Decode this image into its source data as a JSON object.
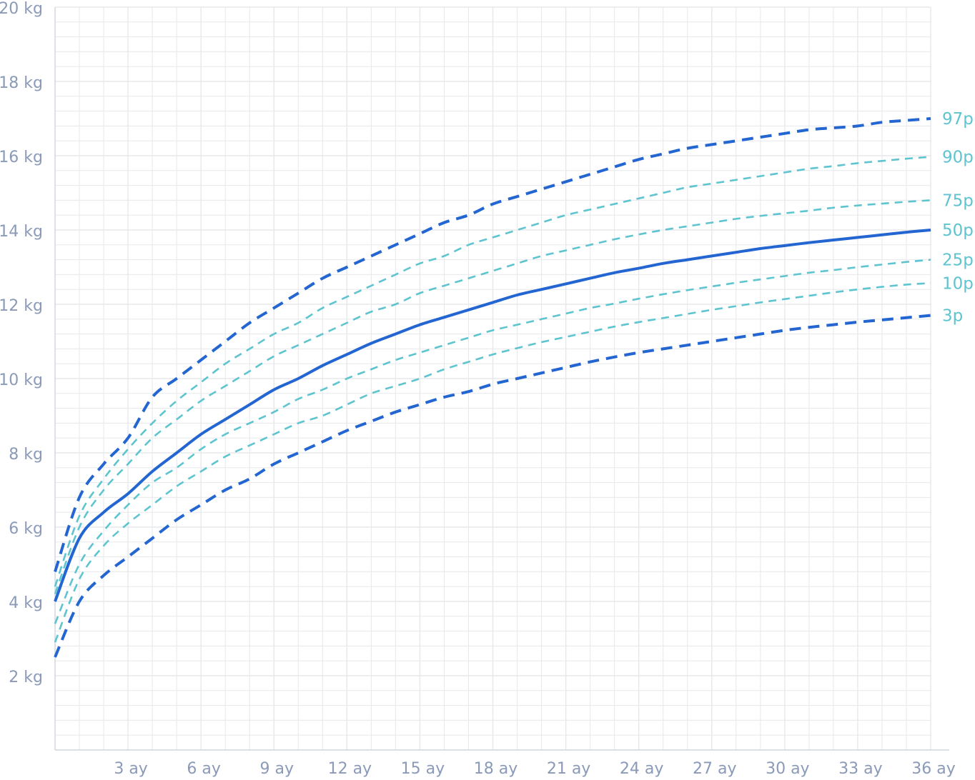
{
  "chart_data": {
    "type": "line",
    "title": "",
    "xlabel": "",
    "ylabel": "",
    "x_unit": "ay",
    "y_unit": "kg",
    "xlim": [
      0,
      36
    ],
    "ylim": [
      0,
      20
    ],
    "x_ticks": [
      {
        "value": 3,
        "label": "3 ay"
      },
      {
        "value": 6,
        "label": "6 ay"
      },
      {
        "value": 9,
        "label": "9 ay"
      },
      {
        "value": 12,
        "label": "12 ay"
      },
      {
        "value": 15,
        "label": "15 ay"
      },
      {
        "value": 18,
        "label": "18 ay"
      },
      {
        "value": 21,
        "label": "21 ay"
      },
      {
        "value": 24,
        "label": "24 ay"
      },
      {
        "value": 27,
        "label": "27 ay"
      },
      {
        "value": 30,
        "label": "30 ay"
      },
      {
        "value": 33,
        "label": "33 ay"
      },
      {
        "value": 36,
        "label": "36 ay"
      }
    ],
    "y_ticks": [
      {
        "value": 2,
        "label": "2 kg"
      },
      {
        "value": 4,
        "label": "4 kg"
      },
      {
        "value": 6,
        "label": "6 kg"
      },
      {
        "value": 8,
        "label": "8 kg"
      },
      {
        "value": 10,
        "label": "10 kg"
      },
      {
        "value": 12,
        "label": "12 kg"
      },
      {
        "value": 14,
        "label": "14 kg"
      },
      {
        "value": 16,
        "label": "16 kg"
      },
      {
        "value": 18,
        "label": "18 kg"
      },
      {
        "value": 20,
        "label": "20 kg"
      }
    ],
    "grid": true,
    "x_minor_step": 1,
    "y_minor_step": 0.4,
    "x": [
      0,
      1,
      2,
      3,
      4,
      5,
      6,
      7,
      8,
      9,
      10,
      11,
      12,
      13,
      14,
      15,
      16,
      17,
      18,
      19,
      20,
      21,
      22,
      23,
      24,
      25,
      26,
      27,
      28,
      29,
      30,
      31,
      32,
      33,
      34,
      35,
      36
    ],
    "series": [
      {
        "name": "97p",
        "style": "dashed-thick",
        "color": "#2366d1",
        "values": [
          4.8,
          6.8,
          7.7,
          8.4,
          9.5,
          10.0,
          10.5,
          11.0,
          11.5,
          11.9,
          12.3,
          12.7,
          13.0,
          13.3,
          13.6,
          13.9,
          14.2,
          14.4,
          14.7,
          14.9,
          15.1,
          15.3,
          15.5,
          15.7,
          15.9,
          16.05,
          16.2,
          16.3,
          16.4,
          16.5,
          16.6,
          16.7,
          16.75,
          16.8,
          16.9,
          16.95,
          17.0
        ]
      },
      {
        "name": "90p",
        "style": "dashed-thin",
        "color": "#5ec4cf",
        "values": [
          4.4,
          6.3,
          7.3,
          8.1,
          8.8,
          9.4,
          9.9,
          10.4,
          10.8,
          11.2,
          11.5,
          11.9,
          12.2,
          12.5,
          12.8,
          13.1,
          13.3,
          13.6,
          13.8,
          14.0,
          14.2,
          14.4,
          14.55,
          14.7,
          14.85,
          15.0,
          15.15,
          15.25,
          15.35,
          15.45,
          15.55,
          15.65,
          15.72,
          15.8,
          15.86,
          15.92,
          15.97
        ]
      },
      {
        "name": "75p",
        "style": "dashed-thin",
        "color": "#5ec4cf",
        "values": [
          4.2,
          6.0,
          7.0,
          7.7,
          8.4,
          8.9,
          9.4,
          9.8,
          10.2,
          10.6,
          10.9,
          11.2,
          11.5,
          11.8,
          12.0,
          12.3,
          12.5,
          12.7,
          12.9,
          13.1,
          13.3,
          13.45,
          13.6,
          13.75,
          13.88,
          14.0,
          14.1,
          14.2,
          14.3,
          14.38,
          14.45,
          14.52,
          14.6,
          14.66,
          14.71,
          14.76,
          14.8
        ]
      },
      {
        "name": "50p",
        "style": "solid",
        "color": "#2366d1",
        "values": [
          4.0,
          5.7,
          6.4,
          6.9,
          7.5,
          8.0,
          8.5,
          8.9,
          9.3,
          9.7,
          10.0,
          10.35,
          10.65,
          10.95,
          11.2,
          11.45,
          11.65,
          11.85,
          12.05,
          12.25,
          12.4,
          12.55,
          12.7,
          12.85,
          12.97,
          13.1,
          13.2,
          13.3,
          13.4,
          13.5,
          13.58,
          13.66,
          13.73,
          13.8,
          13.87,
          13.94,
          14.0
        ]
      },
      {
        "name": "25p",
        "style": "dashed-thin",
        "color": "#5ec4cf",
        "values": [
          3.4,
          5.0,
          5.9,
          6.6,
          7.2,
          7.6,
          8.1,
          8.5,
          8.8,
          9.1,
          9.45,
          9.7,
          10.0,
          10.25,
          10.5,
          10.7,
          10.9,
          11.1,
          11.3,
          11.45,
          11.6,
          11.75,
          11.9,
          12.02,
          12.15,
          12.27,
          12.38,
          12.48,
          12.58,
          12.67,
          12.76,
          12.85,
          12.92,
          13.0,
          13.07,
          13.14,
          13.2
        ]
      },
      {
        "name": "10p",
        "style": "dashed-thin",
        "color": "#5ec4cf",
        "values": [
          2.9,
          4.6,
          5.5,
          6.1,
          6.6,
          7.1,
          7.5,
          7.9,
          8.2,
          8.5,
          8.8,
          9.0,
          9.3,
          9.6,
          9.8,
          10.0,
          10.25,
          10.45,
          10.65,
          10.82,
          10.98,
          11.12,
          11.26,
          11.4,
          11.52,
          11.63,
          11.74,
          11.85,
          11.95,
          12.05,
          12.14,
          12.23,
          12.32,
          12.4,
          12.47,
          12.53,
          12.57
        ]
      },
      {
        "name": "3p",
        "style": "dashed-thick",
        "color": "#2366d1",
        "values": [
          2.5,
          4.0,
          4.7,
          5.2,
          5.7,
          6.2,
          6.6,
          7.0,
          7.3,
          7.7,
          8.0,
          8.3,
          8.6,
          8.85,
          9.1,
          9.3,
          9.5,
          9.65,
          9.85,
          10.0,
          10.15,
          10.3,
          10.45,
          10.58,
          10.7,
          10.8,
          10.9,
          11.0,
          11.1,
          11.2,
          11.3,
          11.38,
          11.45,
          11.52,
          11.58,
          11.64,
          11.7
        ]
      }
    ],
    "legend": "right-end-labels",
    "label_color": "#5ec4cf",
    "axis_label_color": "#8a9ab8",
    "grid_color": "#e6e8ec"
  }
}
